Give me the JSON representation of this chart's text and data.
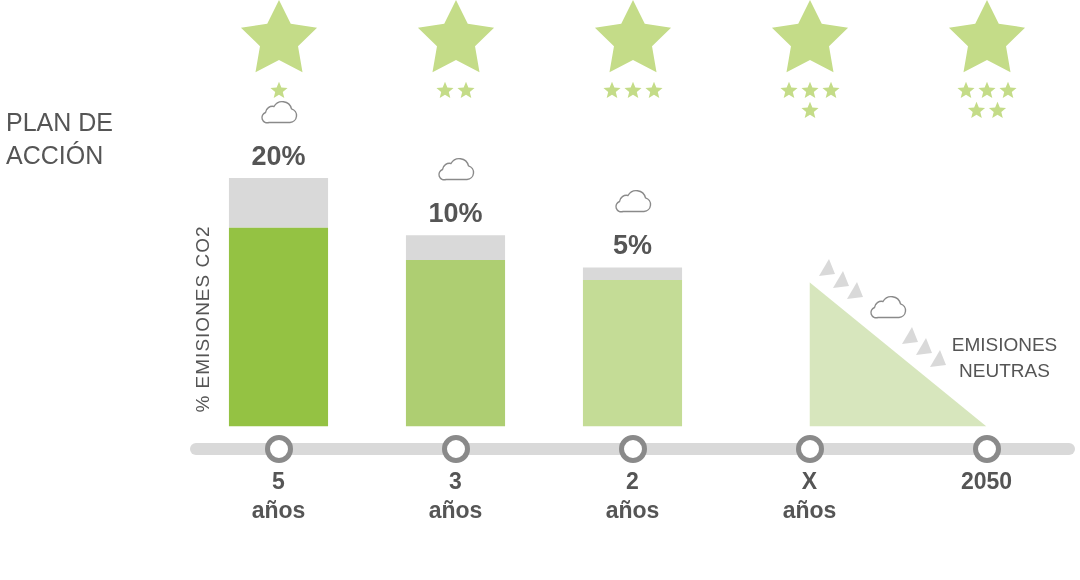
{
  "chart_data": {
    "type": "bar",
    "title": "PLAN DE ACCIÓN",
    "ylabel": "% EMISIONES CO2",
    "categories": [
      "5\naños",
      "3\naños",
      "2\naños",
      "X\naños",
      "2050"
    ],
    "stacked": true,
    "ylim": [
      0,
      100
    ],
    "tick_labels": "x",
    "series": [
      {
        "color": "#94c243",
        "colors": [
          "#94c243",
          "#aece72",
          "#c4dc96",
          null,
          null
        ],
        "values": [
          80,
          67,
          59,
          null,
          null
        ]
      },
      {
        "color": "#d9d9d9",
        "values": [
          20,
          10,
          5,
          null,
          null
        ],
        "value_labels": [
          "20%",
          "10%",
          "5%",
          null,
          null
        ]
      },
      {
        "type": "area",
        "color": "#d7e6bd",
        "values": [
          null,
          null,
          null,
          58,
          0
        ]
      }
    ],
    "annotations": [
      "EMISIONES NEUTRAS"
    ]
  }
}
